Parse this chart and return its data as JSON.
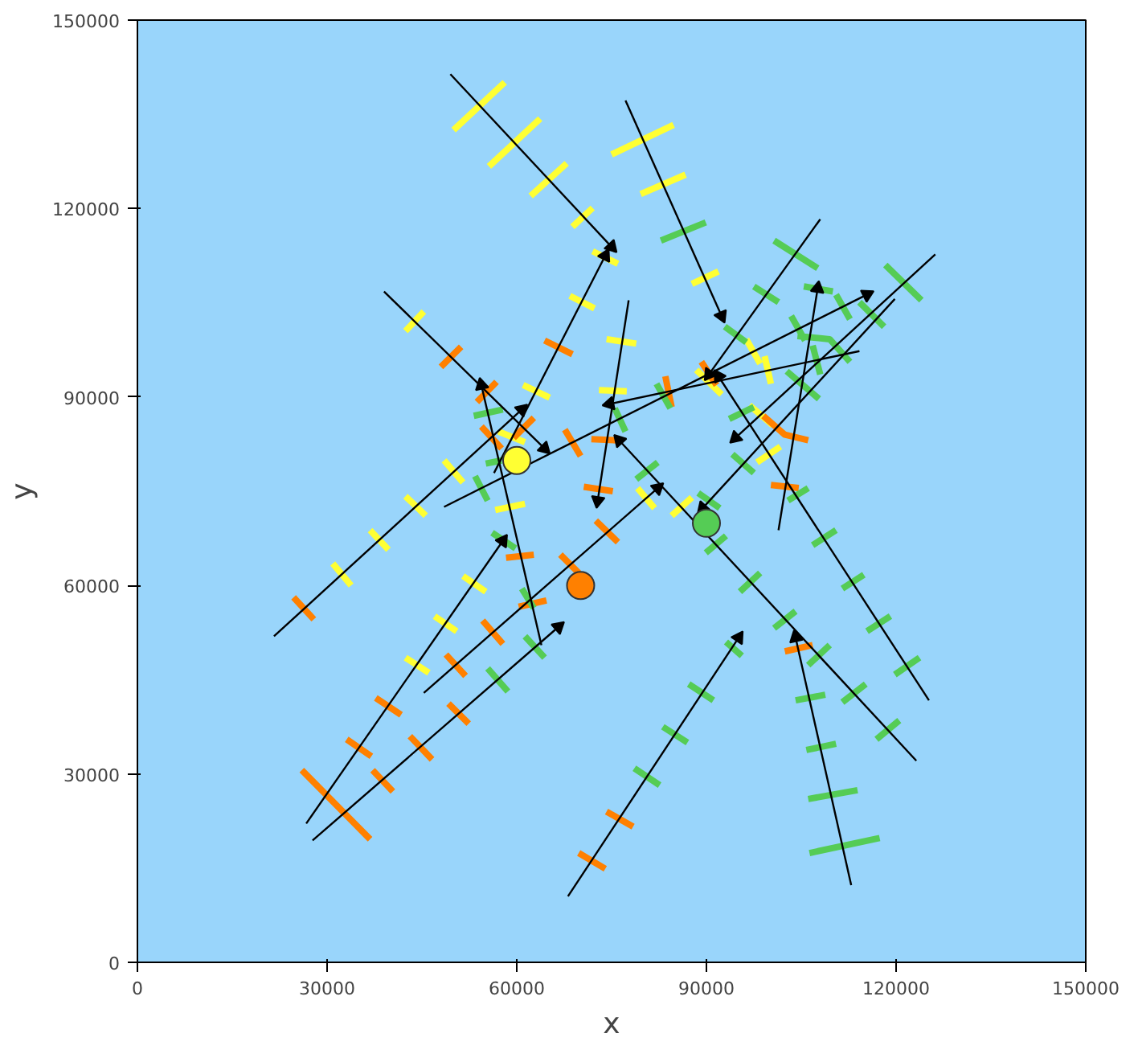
{
  "chart_data": {
    "type": "line",
    "xlabel": "x",
    "ylabel": "y",
    "xlim": [
      0,
      150000
    ],
    "ylim": [
      0,
      150000
    ],
    "xticks": [
      0,
      30000,
      60000,
      90000,
      120000,
      150000
    ],
    "yticks": [
      0,
      30000,
      60000,
      90000,
      120000,
      150000
    ],
    "grid": false,
    "series": [
      {
        "color": "#ffff33",
        "x": [
          50000,
          58100,
          null,
          55600,
          63700,
          null,
          62200,
          67900,
          null,
          68800,
          72000,
          null,
          72000,
          76000,
          null,
          68400,
          72300,
          null,
          42400,
          45300,
          null,
          61000,
          65200,
          null,
          57100,
          61300,
          null,
          48500,
          51500,
          null,
          75000,
          84800,
          null,
          79600,
          86700,
          null,
          87700,
          91900,
          null,
          74200,
          78900,
          null,
          96300,
          98500,
          null,
          99200,
          100200,
          null,
          88400,
          92400,
          null,
          96800,
          100500,
          null,
          98000,
          101700,
          null,
          73000,
          77400,
          null,
          56600,
          61300,
          null,
          42400,
          45600,
          null,
          79100,
          81800,
          null,
          84500,
          87700,
          null,
          36800,
          39700,
          null,
          30900,
          33800,
          null,
          51500,
          55100,
          null,
          47000,
          50500,
          null,
          42400,
          46100
        ],
        "values": [
          132500,
          140100,
          null,
          126700,
          134300,
          null,
          122000,
          127200,
          null,
          117100,
          120100,
          null,
          113200,
          111200,
          null,
          106100,
          104100,
          null,
          100500,
          103600,
          null,
          91900,
          89900,
          null,
          84500,
          82800,
          null,
          79900,
          76400,
          null,
          128600,
          133300,
          null,
          122300,
          125400,
          null,
          108000,
          110000,
          null,
          99200,
          98500,
          null,
          99200,
          95300,
          null,
          96500,
          92100,
          null,
          94300,
          90400,
          null,
          88700,
          85500,
          null,
          79600,
          82100,
          null,
          91100,
          90900,
          null,
          72000,
          73000,
          null,
          74200,
          71100,
          null,
          75500,
          72300,
          null,
          71100,
          74000,
          null,
          68800,
          65700,
          null,
          63500,
          60000,
          null,
          61500,
          59000,
          null,
          55100,
          52700,
          null,
          48500,
          46100
        ]
      },
      {
        "color": "#ff8000",
        "x": [
          48000,
          51200,
          null,
          53700,
          56800,
          null,
          64400,
          68800,
          null,
          59500,
          62700,
          null,
          54400,
          57600,
          null,
          67600,
          70100,
          null,
          71800,
          76000,
          null,
          70600,
          75200,
          null,
          89200,
          91600,
          null,
          83500,
          84500,
          null,
          99000,
          102400,
          106100,
          null,
          100200,
          104600,
          null,
          72500,
          76000,
          null,
          66900,
          69800,
          null,
          58300,
          62700,
          null,
          60300,
          64700,
          null,
          24700,
          27900,
          null,
          54600,
          57800,
          null,
          48800,
          51900,
          null,
          37700,
          41700,
          null,
          49200,
          52400,
          null,
          33100,
          37000,
          null,
          43100,
          46600,
          null,
          37200,
          40400,
          null,
          26000,
          36800,
          null,
          74200,
          78400,
          null,
          69800,
          74000,
          null,
          102400,
          106800
        ],
        "values": [
          94800,
          98000,
          null,
          89200,
          92400,
          null,
          99000,
          96800,
          null,
          83500,
          86700,
          null,
          85300,
          81800,
          null,
          84800,
          80600,
          null,
          83300,
          83100,
          null,
          75700,
          75000,
          null,
          95600,
          91900,
          null,
          93300,
          88400,
          null,
          87000,
          84000,
          83100,
          null,
          76000,
          75500,
          null,
          70300,
          66900,
          null,
          64900,
          62000,
          null,
          64400,
          64900,
          null,
          56600,
          57600,
          null,
          58100,
          54600,
          null,
          54400,
          50700,
          null,
          49000,
          45600,
          null,
          42100,
          39400,
          null,
          41200,
          38000,
          null,
          35500,
          32800,
          null,
          36000,
          32300,
          null,
          30600,
          27200,
          null,
          30600,
          19600,
          null,
          24000,
          21600,
          null,
          17400,
          14900,
          null,
          49500,
          50500
        ]
      },
      {
        "color": "#55cc55",
        "x": [
          82800,
          89900,
          null,
          100700,
          107600,
          null,
          118300,
          124000,
          null,
          97500,
          101400,
          null,
          105400,
          110000,
          null,
          110500,
          112700,
          null,
          114200,
          118100,
          null,
          92900,
          96300,
          null,
          103400,
          105600,
          null,
          104400,
          109500,
          112700,
          null,
          106800,
          108000,
          null,
          102700,
          107800,
          null,
          82100,
          84300,
          null,
          93600,
          97500,
          null,
          75500,
          77200,
          null,
          94100,
          97500,
          null,
          78900,
          82300,
          null,
          53200,
          57800,
          null,
          55100,
          57600,
          null,
          53400,
          55400,
          null,
          88700,
          92100,
          null,
          56100,
          59800,
          null,
          60800,
          62700,
          null,
          89900,
          93100,
          null,
          95300,
          98500,
          null,
          100700,
          104100,
          null,
          102900,
          106100,
          null,
          106800,
          110500,
          null,
          111500,
          114900,
          null,
          115400,
          119100,
          null,
          61300,
          64400,
          null,
          55400,
          58600,
          null,
          93100,
          95600,
          null,
          87200,
          91100,
          null,
          83100,
          87000,
          null,
          78600,
          82600,
          null,
          106100,
          109500,
          null,
          111500,
          115200,
          null,
          116900,
          120500,
          null,
          119800,
          123700,
          null,
          104100,
          108800,
          null,
          105800,
          110500,
          null,
          106100,
          113900,
          null,
          106300,
          117400
        ],
        "values": [
          114900,
          117800,
          null,
          114900,
          110500,
          null,
          111000,
          105400,
          null,
          107600,
          105100,
          null,
          107600,
          106800,
          null,
          106300,
          102400,
          null,
          105100,
          101200,
          null,
          101200,
          98700,
          null,
          102900,
          99000,
          null,
          99700,
          99200,
          95600,
          null,
          98200,
          93600,
          null,
          94100,
          89700,
          null,
          92100,
          88200,
          null,
          86500,
          88400,
          null,
          88200,
          84500,
          null,
          80900,
          77900,
          null,
          76900,
          79600,
          null,
          87000,
          88000,
          null,
          79400,
          79900,
          null,
          77400,
          73500,
          null,
          74700,
          72300,
          null,
          68400,
          65900,
          null,
          59500,
          56400,
          null,
          65200,
          67900,
          null,
          59000,
          62000,
          null,
          53200,
          55900,
          null,
          73500,
          75500,
          null,
          66400,
          68800,
          null,
          59500,
          61700,
          null,
          52700,
          55100,
          null,
          51900,
          48500,
          null,
          46800,
          43100,
          null,
          51000,
          48800,
          null,
          44300,
          41700,
          null,
          37500,
          35000,
          null,
          30900,
          28200,
          null,
          47300,
          50500,
          null,
          41400,
          44300,
          null,
          35500,
          38500,
          null,
          45800,
          48500,
          null,
          41700,
          42600,
          null,
          33800,
          34800,
          null,
          26000,
          27400,
          null,
          17400,
          19800
        ]
      },
      {
        "marker": "triangle",
        "color": "#000000",
        "x": [
          49500,
          75000
        ],
        "values": [
          141400,
          113900
        ]
      },
      {
        "marker": "triangle",
        "color": "#000000",
        "x": [
          39000,
          64400
        ],
        "values": [
          106800,
          81800
        ]
      },
      {
        "marker": "triangle",
        "color": "#000000",
        "x": [
          77200,
          92400
        ],
        "values": [
          137200,
          102900
        ]
      },
      {
        "marker": "triangle",
        "color": "#000000",
        "x": [
          108000,
          90400
        ],
        "values": [
          118300,
          93600
        ]
      },
      {
        "marker": "triangle",
        "color": "#000000",
        "x": [
          126200,
          94600
        ],
        "values": [
          112700,
          83500
        ]
      },
      {
        "marker": "triangle",
        "color": "#000000",
        "x": [
          48500,
          115400
        ],
        "values": [
          72500,
          106300
        ]
      },
      {
        "marker": "triangle",
        "color": "#000000",
        "x": [
          21600,
          60800
        ],
        "values": [
          51900,
          88000
        ]
      },
      {
        "marker": "triangle",
        "color": "#000000",
        "x": [
          56400,
          74000
        ],
        "values": [
          77900,
          112500
        ]
      },
      {
        "marker": "triangle",
        "color": "#000000",
        "x": [
          63900,
          54400
        ],
        "values": [
          50500,
          91900
        ]
      },
      {
        "marker": "triangle",
        "color": "#000000",
        "x": [
          77700,
          72800
        ],
        "values": [
          105400,
          73500
        ]
      },
      {
        "marker": "triangle",
        "color": "#000000",
        "x": [
          114200,
          74700
        ],
        "values": [
          97300,
          88900
        ]
      },
      {
        "marker": "triangle",
        "color": "#000000",
        "x": [
          101400,
          107600
        ],
        "values": [
          68800,
          107300
        ]
      },
      {
        "marker": "triangle",
        "color": "#000000",
        "x": [
          125200,
          91900
        ],
        "values": [
          41700,
          93300
        ]
      },
      {
        "marker": "triangle",
        "color": "#000000",
        "x": [
          123200,
          76200
        ],
        "values": [
          32100,
          83100
        ]
      },
      {
        "marker": "triangle",
        "color": "#000000",
        "x": [
          119800,
          89400
        ],
        "values": [
          105600,
          72300
        ]
      },
      {
        "marker": "triangle",
        "color": "#000000",
        "x": [
          68100,
          95100
        ],
        "values": [
          10500,
          51700
        ]
      },
      {
        "marker": "triangle",
        "color": "#000000",
        "x": [
          26700,
          57800
        ],
        "values": [
          22100,
          67100
        ]
      },
      {
        "marker": "triangle",
        "color": "#000000",
        "x": [
          27700,
          66600
        ],
        "values": [
          19400,
          53400
        ]
      },
      {
        "marker": "triangle",
        "color": "#000000",
        "x": [
          45300,
          82300
        ],
        "values": [
          42900,
          75500
        ]
      },
      {
        "marker": "triangle",
        "color": "#000000",
        "x": [
          112900,
          104100
        ],
        "values": [
          12300,
          51700
        ]
      },
      {
        "type": "scatter",
        "marker": "circle",
        "colors": [
          "#ffff33",
          "#ff8000",
          "#55cc55"
        ],
        "x": [
          60000,
          70100,
          90000
        ],
        "values": [
          79900,
          60000,
          69900
        ]
      }
    ]
  }
}
